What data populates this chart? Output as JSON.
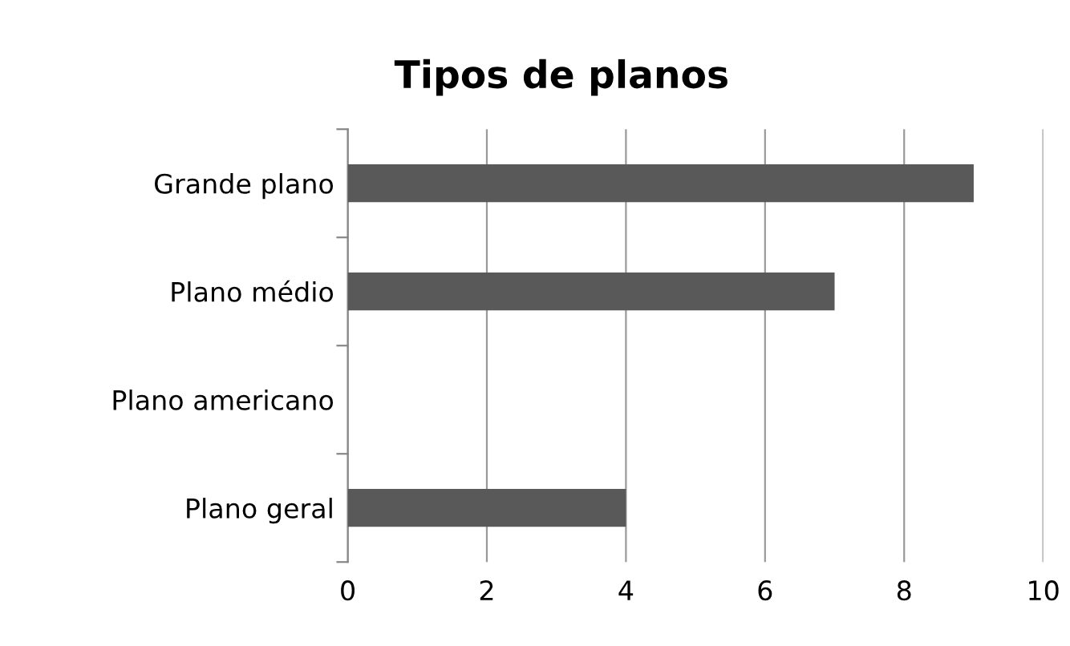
{
  "chart_data": {
    "type": "bar",
    "title": "Tipos de planos",
    "orientation": "horizontal",
    "categories": [
      "Grande plano",
      "Plano médio",
      "Plano americano",
      "Plano geral"
    ],
    "values": [
      9,
      7,
      0,
      4
    ],
    "color": "#595959",
    "xlim": [
      0,
      10
    ],
    "xticks": [
      0,
      2,
      4,
      6,
      8,
      10
    ],
    "grid": "x",
    "legend": false
  }
}
